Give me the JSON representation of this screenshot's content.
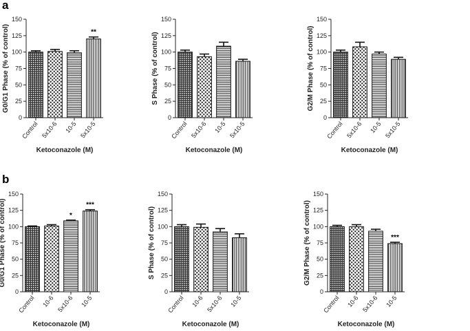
{
  "figure": {
    "panel_labels": [
      "a",
      "b"
    ]
  },
  "chart_data": [
    {
      "type": "bar",
      "panel": "a",
      "title": "",
      "xlabel": "Ketoconazole (M)",
      "ylabel": "G0/G1 Phase (% of control)",
      "ylim": [
        0,
        150
      ],
      "yticks": [
        0,
        25,
        50,
        75,
        100,
        125,
        150
      ],
      "categories": [
        "Control",
        "5x10-6",
        "10-5",
        "5x10-5"
      ],
      "patterns": [
        "crosshatch",
        "checker",
        "hlines",
        "vlines"
      ],
      "values": [
        100,
        101,
        99,
        120
      ],
      "errors": [
        2,
        3,
        3,
        3
      ],
      "significance": [
        "",
        "",
        "",
        "**"
      ]
    },
    {
      "type": "bar",
      "panel": "a",
      "title": "",
      "xlabel": "Ketoconazole (M)",
      "ylabel": "S Phase (% of control)",
      "ylim": [
        0,
        150
      ],
      "yticks": [
        0,
        25,
        50,
        75,
        100,
        125,
        150
      ],
      "categories": [
        "Control",
        "5x10-6",
        "10-5",
        "5x10-5"
      ],
      "patterns": [
        "crosshatch",
        "checker",
        "hlines",
        "vlines"
      ],
      "values": [
        100,
        93,
        109,
        86
      ],
      "errors": [
        3,
        4,
        6,
        3
      ],
      "significance": [
        "",
        "",
        "",
        ""
      ]
    },
    {
      "type": "bar",
      "panel": "a",
      "title": "",
      "xlabel": "Ketoconazole (M)",
      "ylabel": "G2/M Phase (% of control)",
      "ylim": [
        0,
        150
      ],
      "yticks": [
        0,
        25,
        50,
        75,
        100,
        125,
        150
      ],
      "categories": [
        "Control",
        "5x10-6",
        "10-5",
        "5x10-5"
      ],
      "patterns": [
        "crosshatch",
        "checker",
        "hlines",
        "vlines"
      ],
      "values": [
        100,
        108,
        97,
        89
      ],
      "errors": [
        3,
        7,
        3,
        3
      ],
      "significance": [
        "",
        "",
        "",
        ""
      ]
    },
    {
      "type": "bar",
      "panel": "b",
      "title": "",
      "xlabel": "Ketoconazole (M)",
      "ylabel": "G0/G1 Phase (% of control)",
      "ylim": [
        0,
        150
      ],
      "yticks": [
        0,
        25,
        50,
        75,
        100,
        125,
        150
      ],
      "categories": [
        "Control",
        "10-6",
        "5x10-6",
        "10-5"
      ],
      "patterns": [
        "crosshatch",
        "checker",
        "hlines",
        "vlines"
      ],
      "values": [
        100,
        101,
        109,
        124
      ],
      "errors": [
        1,
        2,
        1,
        2
      ],
      "significance": [
        "",
        "",
        "*",
        "***"
      ]
    },
    {
      "type": "bar",
      "panel": "b",
      "title": "",
      "xlabel": "Ketoconazole (M)",
      "ylabel": "S Phase (% of control)",
      "ylim": [
        0,
        150
      ],
      "yticks": [
        0,
        25,
        50,
        75,
        100,
        125,
        150
      ],
      "categories": [
        "Control",
        "10-6",
        "5x10-6",
        "10-5"
      ],
      "patterns": [
        "crosshatch",
        "checker",
        "hlines",
        "vlines"
      ],
      "values": [
        100,
        99,
        92,
        83
      ],
      "errors": [
        3,
        5,
        5,
        6
      ],
      "significance": [
        "",
        "",
        "",
        ""
      ]
    },
    {
      "type": "bar",
      "panel": "b",
      "title": "",
      "xlabel": "Ketoconazole (M)",
      "ylabel": "G2/M Phase (% of control)",
      "ylim": [
        0,
        150
      ],
      "yticks": [
        0,
        25,
        50,
        75,
        100,
        125,
        150
      ],
      "categories": [
        "Control",
        "10-6",
        "5x10-6",
        "10-5"
      ],
      "patterns": [
        "crosshatch",
        "checker",
        "hlines",
        "vlines"
      ],
      "values": [
        100,
        100,
        93,
        74
      ],
      "errors": [
        2,
        3,
        3,
        2
      ],
      "significance": [
        "",
        "",
        "",
        "***"
      ]
    }
  ]
}
